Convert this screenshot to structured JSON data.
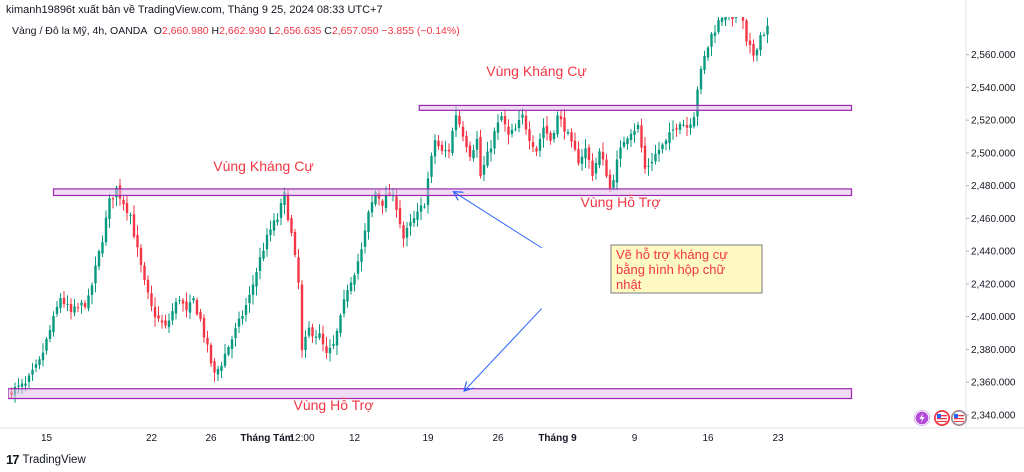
{
  "header": {
    "attribution": "kimanh19896t xuất bản về TradingView.com, Tháng 9 25, 2024 08:33 UTC+7",
    "symbol": "Vàng / Đô la Mỹ, 4h, OANDA",
    "o_label": "O",
    "o_value": "2,660.980",
    "h_label": "H",
    "h_value": "2,662.930",
    "l_label": "L",
    "l_value": "2,656.635",
    "c_label": "C",
    "c_value": "2,657.050",
    "change": "−3.855 (−0.14%)"
  },
  "footer": {
    "brand": "TradingView",
    "logo": "17"
  },
  "colors": {
    "up": "#089981",
    "down": "#f23645",
    "zone_stroke": "#9c27b0",
    "zone_fill": "#e1bee7",
    "label": "#f23645",
    "arrow": "#2962ff",
    "note_bg": "#fff9c4"
  },
  "chart_data": {
    "type": "candlestick",
    "symbol": "XAU/USD",
    "timeframe": "4h",
    "y_ticks": [
      "2,340.000",
      "2,360.000",
      "2,380.000",
      "2,400.000",
      "2,420.000",
      "2,440.000",
      "2,460.000",
      "2,480.000",
      "2,500.000",
      "2,520.000",
      "2,540.000",
      "2,560.000"
    ],
    "ylim": [
      2332,
      2583
    ],
    "x_tick_labels": [
      {
        "label": "15",
        "bar": 10
      },
      {
        "label": "22",
        "bar": 40
      },
      {
        "label": "26",
        "bar": 57
      },
      {
        "label": "Tháng Tám",
        "bar": 73
      },
      {
        "label": "12:00",
        "bar": 83
      },
      {
        "label": "12",
        "bar": 98
      },
      {
        "label": "19",
        "bar": 119
      },
      {
        "label": "26",
        "bar": 139
      },
      {
        "label": "Tháng 9",
        "bar": 156
      },
      {
        "label": "9",
        "bar": 178
      },
      {
        "label": "16",
        "bar": 199
      },
      {
        "label": "23",
        "bar": 219
      }
    ],
    "close_path": [
      [
        0,
        2355
      ],
      [
        4,
        2358
      ],
      [
        8,
        2372
      ],
      [
        12,
        2398
      ],
      [
        14,
        2412
      ],
      [
        17,
        2402
      ],
      [
        22,
        2410
      ],
      [
        26,
        2448
      ],
      [
        28,
        2470
      ],
      [
        30,
        2478
      ],
      [
        32,
        2470
      ],
      [
        34,
        2462
      ],
      [
        36,
        2440
      ],
      [
        38,
        2420
      ],
      [
        40,
        2405
      ],
      [
        42,
        2398
      ],
      [
        44,
        2393
      ],
      [
        46,
        2403
      ],
      [
        48,
        2412
      ],
      [
        50,
        2402
      ],
      [
        52,
        2410
      ],
      [
        54,
        2398
      ],
      [
        56,
        2380
      ],
      [
        58,
        2364
      ],
      [
        60,
        2372
      ],
      [
        62,
        2382
      ],
      [
        65,
        2396
      ],
      [
        68,
        2412
      ],
      [
        70,
        2428
      ],
      [
        72,
        2442
      ],
      [
        74,
        2453
      ],
      [
        76,
        2460
      ],
      [
        78,
        2474
      ],
      [
        80,
        2450
      ],
      [
        82,
        2420
      ],
      [
        83,
        2378
      ],
      [
        85,
        2392
      ],
      [
        88,
        2388
      ],
      [
        90,
        2376
      ],
      [
        92,
        2382
      ],
      [
        94,
        2398
      ],
      [
        96,
        2418
      ],
      [
        98,
        2428
      ],
      [
        100,
        2440
      ],
      [
        102,
        2462
      ],
      [
        104,
        2476
      ],
      [
        106,
        2470
      ],
      [
        108,
        2475
      ],
      [
        110,
        2468
      ],
      [
        112,
        2448
      ],
      [
        114,
        2456
      ],
      [
        116,
        2462
      ],
      [
        118,
        2470
      ],
      [
        119,
        2484
      ],
      [
        121,
        2508
      ],
      [
        123,
        2500
      ],
      [
        125,
        2502
      ],
      [
        127,
        2524
      ],
      [
        129,
        2512
      ],
      [
        131,
        2500
      ],
      [
        133,
        2508
      ],
      [
        134,
        2486
      ],
      [
        136,
        2498
      ],
      [
        138,
        2512
      ],
      [
        140,
        2522
      ],
      [
        142,
        2510
      ],
      [
        144,
        2514
      ],
      [
        146,
        2522
      ],
      [
        148,
        2510
      ],
      [
        150,
        2502
      ],
      [
        152,
        2516
      ],
      [
        154,
        2508
      ],
      [
        156,
        2522
      ],
      [
        158,
        2516
      ],
      [
        160,
        2504
      ],
      [
        162,
        2496
      ],
      [
        164,
        2502
      ],
      [
        166,
        2488
      ],
      [
        168,
        2500
      ],
      [
        170,
        2488
      ],
      [
        171,
        2478
      ],
      [
        173,
        2494
      ],
      [
        175,
        2508
      ],
      [
        177,
        2514
      ],
      [
        179,
        2516
      ],
      [
        181,
        2490
      ],
      [
        183,
        2496
      ],
      [
        185,
        2502
      ],
      [
        187,
        2506
      ],
      [
        189,
        2514
      ],
      [
        191,
        2520
      ],
      [
        193,
        2516
      ],
      [
        195,
        2524
      ],
      [
        196,
        2540
      ],
      [
        198,
        2558
      ],
      [
        200,
        2572
      ],
      [
        202,
        2580
      ],
      [
        204,
        2588
      ],
      [
        206,
        2584
      ],
      [
        208,
        2592
      ],
      [
        210,
        2566
      ],
      [
        212,
        2560
      ],
      [
        214,
        2572
      ],
      [
        216,
        2576
      ]
    ],
    "zones": [
      {
        "name": "resistance_top",
        "y_top": 2529,
        "y_bottom": 2526,
        "bar_start": 116.5,
        "bar_end": 240
      },
      {
        "name": "resistance_mid",
        "y_top": 2478,
        "y_bottom": 2474,
        "bar_start": 12,
        "bar_end": 240
      },
      {
        "name": "support_bottom",
        "y_top": 2356,
        "y_bottom": 2350,
        "bar_start": -2,
        "bar_end": 240
      }
    ],
    "labels": [
      {
        "text": "Vùng Kháng Cự",
        "bar": 150,
        "y": 2547
      },
      {
        "text": "Vùng Kháng Cự",
        "bar": 72,
        "y": 2489
      },
      {
        "text": "Vùng Hỗ Trợ",
        "bar": 174,
        "y": 2467
      },
      {
        "text": "Vùng Hỗ Trợ",
        "bar": 92,
        "y": 2343
      }
    ],
    "note": {
      "lines": [
        "Vẽ hỗ trợ kháng cự",
        "bằng hình hộp chữ",
        "nhật"
      ]
    },
    "arrows": [
      {
        "from_bar": 151.5,
        "from_y": 2442,
        "to_bar": 126.5,
        "to_y": 2476
      },
      {
        "from_bar": 151.5,
        "from_y": 2405,
        "to_bar": 129.5,
        "to_y": 2355
      }
    ]
  }
}
